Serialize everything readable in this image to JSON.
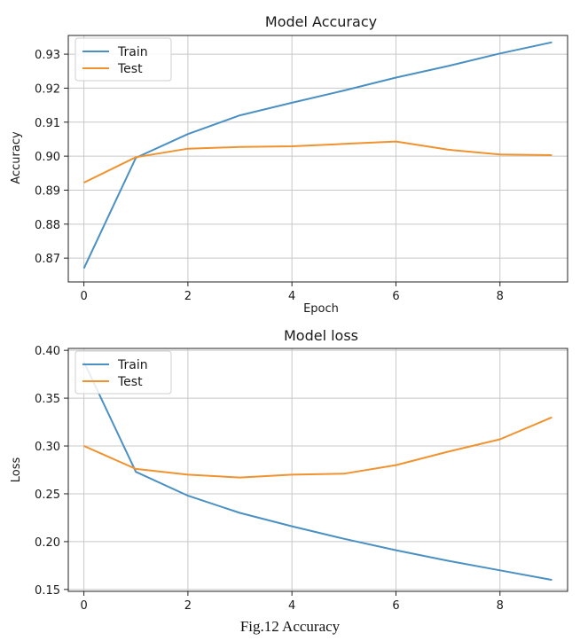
{
  "caption": "Fig.12 Accuracy",
  "chart_data": [
    {
      "type": "line",
      "title": "Model Accuracy",
      "xlabel": "Epoch",
      "ylabel": "Accuracy",
      "x": [
        0,
        1,
        2,
        3,
        4,
        5,
        6,
        7,
        8,
        9
      ],
      "xlim": [
        -0.3,
        9.3
      ],
      "ylim": [
        0.863,
        0.9355
      ],
      "xticks": [
        0,
        2,
        4,
        6,
        8
      ],
      "yticks": [
        0.87,
        0.88,
        0.89,
        0.9,
        0.91,
        0.92,
        0.93
      ],
      "ytick_labels": [
        "0.87",
        "0.88",
        "0.89",
        "0.90",
        "0.91",
        "0.92",
        "0.93"
      ],
      "grid": true,
      "legend": "upper-left",
      "series": [
        {
          "name": "Train",
          "color": "#4a90c2",
          "values": [
            0.867,
            0.8995,
            0.9065,
            0.912,
            0.9157,
            0.9193,
            0.9231,
            0.9265,
            0.9302,
            0.9335
          ]
        },
        {
          "name": "Test",
          "color": "#f0922e",
          "values": [
            0.8922,
            0.8997,
            0.9022,
            0.9027,
            0.9029,
            0.9036,
            0.9043,
            0.9019,
            0.9005,
            0.9003
          ]
        }
      ]
    },
    {
      "type": "line",
      "title": "Model loss",
      "xlabel": "",
      "ylabel": "Loss",
      "x": [
        0,
        1,
        2,
        3,
        4,
        5,
        6,
        7,
        8,
        9
      ],
      "xlim": [
        -0.3,
        9.3
      ],
      "ylim": [
        0.148,
        0.402
      ],
      "xticks": [
        0,
        2,
        4,
        6,
        8
      ],
      "yticks": [
        0.15,
        0.2,
        0.25,
        0.3,
        0.35,
        0.4
      ],
      "ytick_labels": [
        "0.15",
        "0.20",
        "0.25",
        "0.30",
        "0.35",
        "0.40"
      ],
      "grid": true,
      "legend": "upper-left",
      "series": [
        {
          "name": "Train",
          "color": "#4a90c2",
          "values": [
            0.388,
            0.273,
            0.248,
            0.23,
            0.216,
            0.203,
            0.191,
            0.18,
            0.17,
            0.16
          ]
        },
        {
          "name": "Test",
          "color": "#f0922e",
          "values": [
            0.3,
            0.276,
            0.27,
            0.267,
            0.27,
            0.271,
            0.28,
            0.294,
            0.307,
            0.33
          ]
        }
      ]
    }
  ]
}
